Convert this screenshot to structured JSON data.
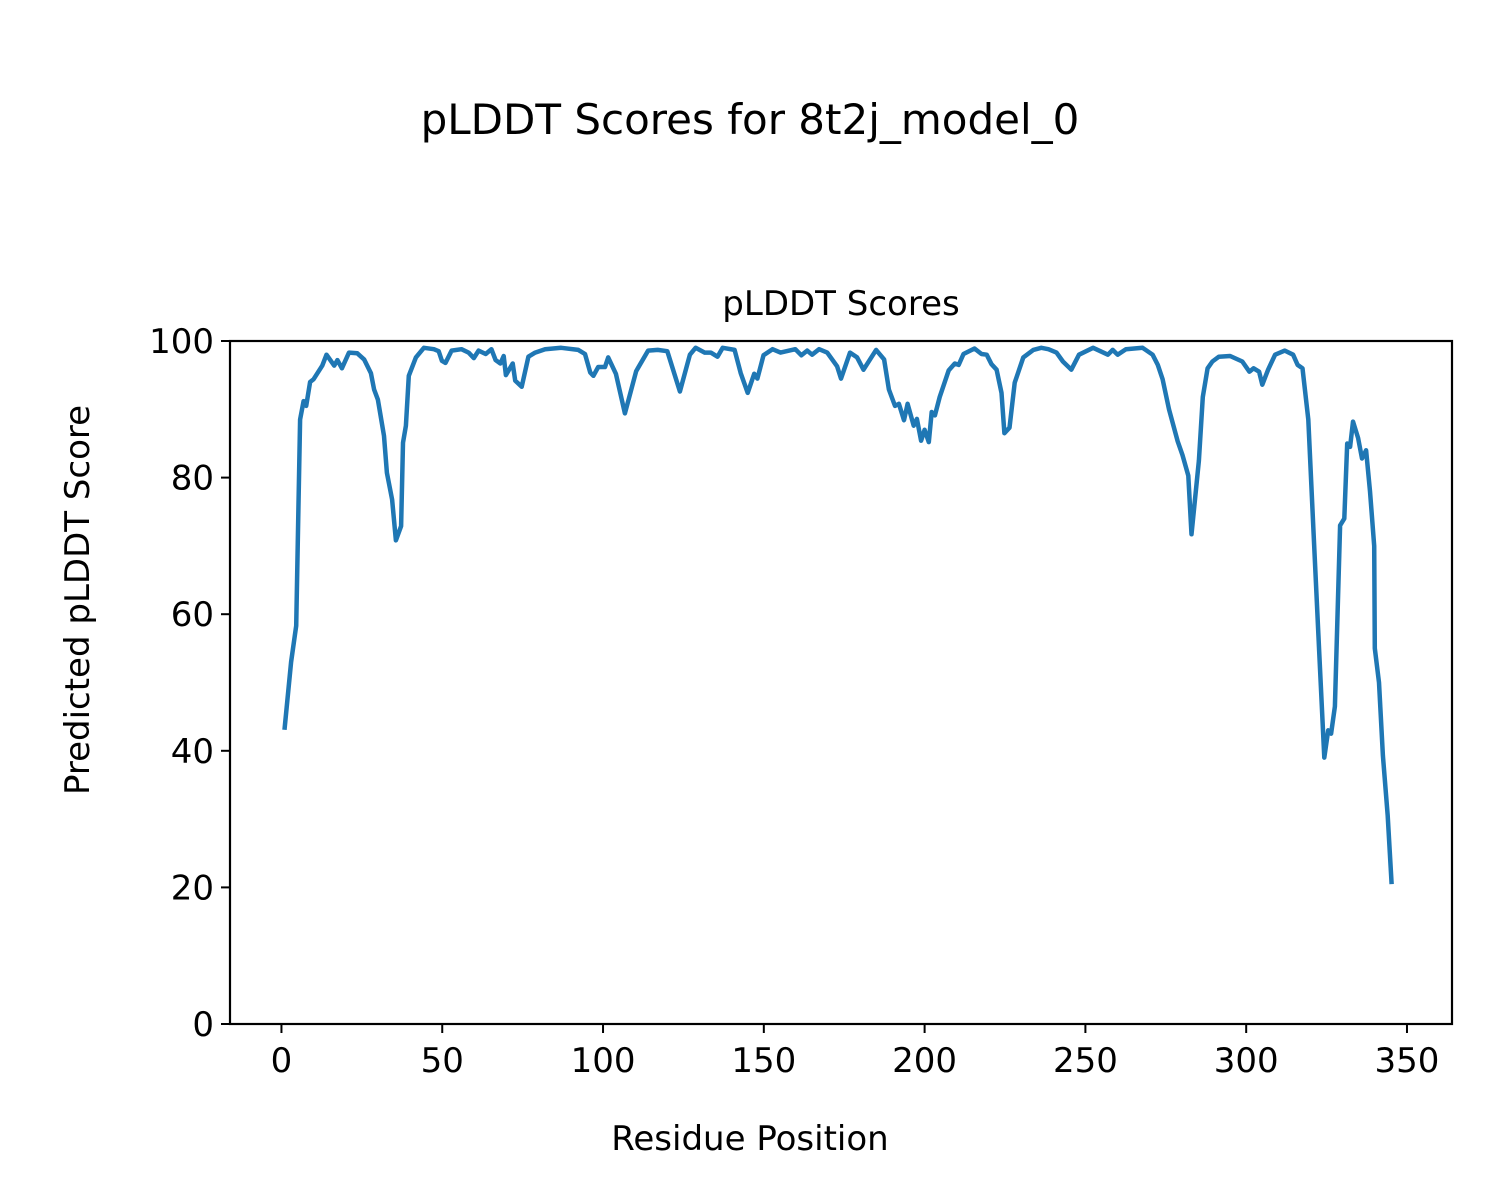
{
  "figure_title": "pLDDT Scores for 8t2j_model_0",
  "chart_data": {
    "type": "line",
    "title": "pLDDT Scores",
    "xlabel": "Residue Position",
    "ylabel": "Predicted pLDDT Score",
    "xlim": [
      -16,
      364
    ],
    "ylim": [
      0,
      100
    ],
    "xticks": [
      0,
      50,
      100,
      150,
      200,
      250,
      300,
      350
    ],
    "yticks": [
      0,
      20,
      40,
      60,
      80,
      100
    ],
    "grid": false,
    "series": [
      {
        "name": "pLDDT",
        "color": "#1f77b4",
        "x": [
          1,
          3,
          4.6,
          5.8,
          6.9,
          7.7,
          8.9,
          10,
          12.7,
          14,
          16.4,
          17.4,
          18.8,
          21,
          23.6,
          25.7,
          27.8,
          28.8,
          30,
          31.9,
          32.8,
          34.4,
          35.6,
          37.2,
          37.8,
          38.7,
          39.6,
          41.8,
          44.3,
          47.4,
          48.9,
          49.9,
          51,
          52.9,
          56,
          58.2,
          59.8,
          61.3,
          63.5,
          65.3,
          66.6,
          68.1,
          69.1,
          69.8,
          71.9,
          72.7,
          74.7,
          76.8,
          78.9,
          82,
          87,
          92.3,
          94.4,
          96,
          97,
          98.5,
          100.6,
          101.6,
          104,
          106.8,
          110.3,
          114,
          117,
          120,
          123.9,
          127,
          128.8,
          131.6,
          133.5,
          135.6,
          137.2,
          140.9,
          142.8,
          145,
          147,
          148,
          149.9,
          152.7,
          155.2,
          159.8,
          161.7,
          163.5,
          165,
          167.2,
          169.7,
          172.8,
          174,
          176.8,
          179,
          181,
          184.9,
          187.4,
          188.9,
          190.8,
          192,
          193.6,
          194.7,
          196.6,
          197.6,
          198.9,
          200,
          201.3,
          202.2,
          203.2,
          204.7,
          207.5,
          209.4,
          210.6,
          212.1,
          215.5,
          217.7,
          219.3,
          220.8,
          222.4,
          223.9,
          224.8,
          226.4,
          228,
          230.7,
          233.8,
          236.3,
          238.5,
          241,
          243,
          245.6,
          248,
          252.4,
          257,
          258.5,
          260,
          262.6,
          267.8,
          270.9,
          272.5,
          274,
          276,
          278.7,
          280.2,
          282,
          283,
          285.3,
          286.5,
          288,
          289.5,
          291.5,
          295,
          298.8,
          301,
          302.3,
          304,
          305,
          306.8,
          309,
          312,
          314.6,
          316,
          317.5,
          319.3,
          321,
          322.7,
          324.3,
          325.5,
          326.4,
          327.6,
          329.2,
          330.5,
          331.4,
          332.3,
          333.2,
          334.8,
          336,
          337.3,
          338.5,
          339.8,
          340,
          341.3,
          342.5,
          344,
          345.2
        ],
        "y": [
          43.4,
          53,
          58.3,
          88.5,
          91.2,
          90.5,
          94,
          94.4,
          96.4,
          98,
          96.4,
          97.2,
          96,
          98.3,
          98.2,
          97.3,
          95.3,
          92.9,
          91.4,
          86.1,
          80.7,
          76.8,
          70.8,
          72.9,
          85.1,
          87.6,
          94.9,
          97.6,
          99,
          98.8,
          98.5,
          97.1,
          96.8,
          98.6,
          98.8,
          98.3,
          97.5,
          98.6,
          98.1,
          98.8,
          97.2,
          96.7,
          97.8,
          95,
          96.7,
          94.2,
          93.3,
          97.7,
          98.3,
          98.8,
          99,
          98.7,
          98.1,
          95.4,
          94.9,
          96.2,
          96.2,
          97.6,
          95.2,
          89.4,
          95.6,
          98.6,
          98.7,
          98.5,
          92.6,
          98,
          99,
          98.3,
          98.3,
          97.7,
          99,
          98.7,
          95.3,
          92.4,
          95.2,
          94.5,
          97.9,
          98.8,
          98.3,
          98.8,
          97.9,
          98.6,
          98,
          98.8,
          98.3,
          96.3,
          94.5,
          98.3,
          97.6,
          95.8,
          98.7,
          97.3,
          92.9,
          90.5,
          90.8,
          88.4,
          90.8,
          87.6,
          88.6,
          85.4,
          87,
          85.2,
          89.6,
          89.1,
          91.8,
          95.7,
          96.7,
          96.5,
          98.1,
          98.9,
          98.1,
          98,
          96.6,
          95.8,
          92.4,
          86.5,
          87.3,
          93.9,
          97.6,
          98.7,
          99,
          98.8,
          98.3,
          97,
          95.8,
          98,
          99,
          98,
          98.7,
          98,
          98.8,
          99,
          98,
          96.5,
          94.4,
          90,
          85.3,
          83.3,
          80.3,
          71.7,
          82.5,
          91.8,
          96,
          97,
          97.7,
          97.8,
          97,
          95.5,
          96,
          95.5,
          93.6,
          95.8,
          98,
          98.6,
          98,
          96.5,
          96,
          88.5,
          71.5,
          54.5,
          39,
          43,
          42.5,
          46.5,
          73,
          74,
          85,
          84.5,
          88.2,
          85.8,
          82.8,
          84,
          78,
          70,
          55,
          50,
          39.3,
          30.5,
          20.8
        ]
      }
    ]
  }
}
